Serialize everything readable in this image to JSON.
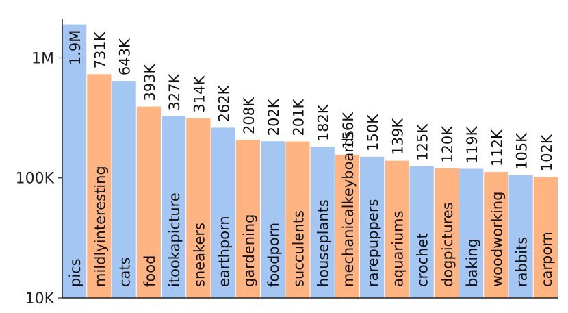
{
  "chart_data": {
    "type": "bar",
    "scale": "log",
    "ylim": [
      10000,
      2100000
    ],
    "yticks": [
      {
        "value": 1000000,
        "label": "1M"
      },
      {
        "value": 100000,
        "label": "100K"
      },
      {
        "value": 10000,
        "label": "10K"
      }
    ],
    "grid": false,
    "colors": [
      "#a3c6f2",
      "#ffb482"
    ],
    "categories": [
      "pics",
      "mildlyinteresting",
      "cats",
      "food",
      "itookapicture",
      "sneakers",
      "earthporn",
      "gardening",
      "foodporn",
      "succulents",
      "houseplants",
      "mechanicalkeyboards",
      "rarepuppers",
      "aquariums",
      "crochet",
      "dogpictures",
      "baking",
      "woodworking",
      "rabbits",
      "carporn"
    ],
    "values": [
      1900000,
      731000,
      643000,
      393000,
      327000,
      314000,
      262000,
      208000,
      202000,
      201000,
      182000,
      156000,
      150000,
      139000,
      125000,
      120000,
      119000,
      112000,
      105000,
      102000
    ],
    "value_labels": [
      "1.9M",
      "731K",
      "643K",
      "393K",
      "327K",
      "314K",
      "262K",
      "208K",
      "202K",
      "201K",
      "182K",
      "156K",
      "150K",
      "139K",
      "125K",
      "120K",
      "119K",
      "112K",
      "105K",
      "102K"
    ]
  }
}
